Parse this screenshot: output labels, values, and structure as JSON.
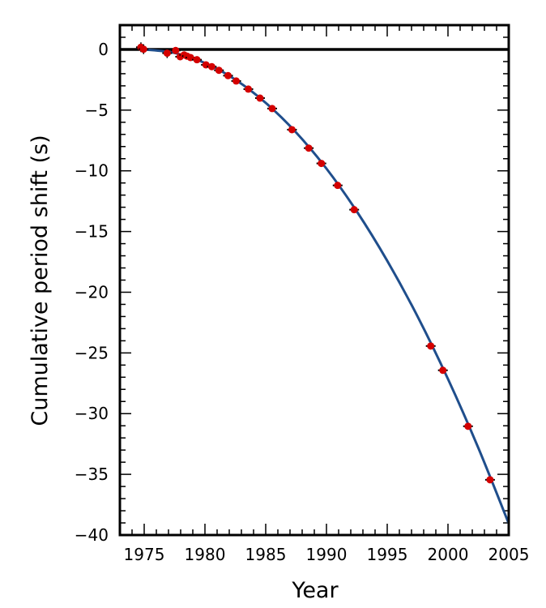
{
  "chart_data": {
    "type": "scatter",
    "title": "",
    "xlabel": "Year",
    "ylabel": "Cumulative period shift (s)",
    "xlim": [
      1973,
      2005
    ],
    "ylim": [
      -40,
      2
    ],
    "xticks": [
      1975,
      1980,
      1985,
      1990,
      1995,
      2000,
      2005
    ],
    "yticks": [
      0,
      -5,
      -10,
      -15,
      -20,
      -25,
      -30,
      -35,
      -40
    ],
    "xtick_labels": [
      "1975",
      "1980",
      "1985",
      "1990",
      "1995",
      "2000",
      "2005"
    ],
    "ytick_labels": [
      "0",
      "−5",
      "−10",
      "−15",
      "−20",
      "−25",
      "−30",
      "−35",
      "−40"
    ],
    "grid": false,
    "legend": "none",
    "zero_line": true,
    "colors": {
      "points": "#d40000",
      "curve": "#1f4e8c",
      "error_bars": "#000000"
    },
    "series": [
      {
        "kind": "points-with-error-bars",
        "x": [
          1974.73,
          1974.95,
          1976.89,
          1977.59,
          1977.96,
          1978.29,
          1978.52,
          1978.81,
          1979.34,
          1980.08,
          1980.56,
          1981.15,
          1981.9,
          1982.57,
          1983.57,
          1984.53,
          1985.53,
          1987.16,
          1988.54,
          1989.58,
          1990.92,
          1992.28,
          1998.58,
          1999.58,
          2001.65,
          2003.46
        ],
        "y": [
          0.18,
          0.02,
          -0.31,
          -0.09,
          -0.6,
          -0.45,
          -0.55,
          -0.67,
          -0.85,
          -1.27,
          -1.42,
          -1.72,
          -2.16,
          -2.6,
          -3.27,
          -4.01,
          -4.87,
          -6.61,
          -8.13,
          -9.39,
          -11.2,
          -13.2,
          -24.43,
          -26.43,
          -31.04,
          -35.45
        ]
      },
      {
        "kind": "curve",
        "x": [
          1975,
          1977.5,
          1980,
          1982.5,
          1985,
          1987.5,
          1990,
          1992.5,
          1995,
          1997.5,
          2000,
          2002.5,
          2005
        ],
        "y": [
          0,
          -0.29,
          -1.12,
          -2.49,
          -4.4,
          -6.84,
          -9.82,
          -13.35,
          -17.41,
          -22.0,
          -27.15,
          -32.83,
          -39.05
        ]
      }
    ]
  }
}
